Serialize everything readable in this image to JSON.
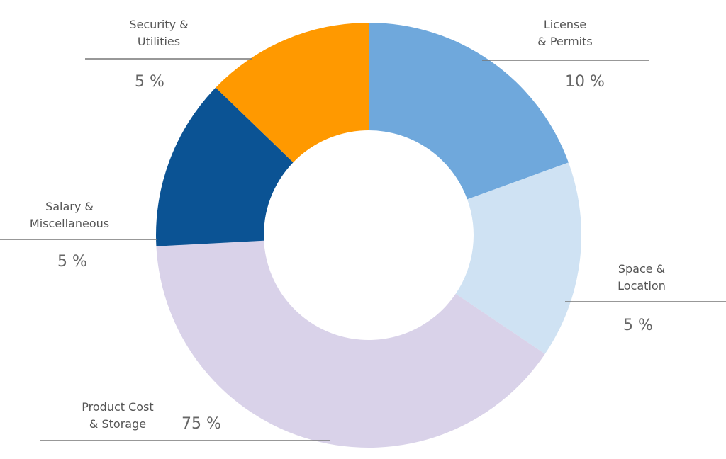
{
  "chart_data": {
    "type": "pie",
    "donut": true,
    "title": "",
    "slices": [
      {
        "label_lines": [
          "License",
          "& Permits"
        ],
        "value": 10,
        "value_text": "10  %",
        "color": "#6fa8dc"
      },
      {
        "label_lines": [
          "Space &",
          "Location"
        ],
        "value": 5,
        "value_text": "5  %",
        "color": "#cfe2f3"
      },
      {
        "label_lines": [
          "Product Cost",
          "& Storage"
        ],
        "value": 75,
        "value_text": "75  %",
        "color": "#d9d2e9"
      },
      {
        "label_lines": [
          "Salary &",
          "Miscellaneous"
        ],
        "value": 5,
        "value_text": "5  %",
        "color": "#0b5394"
      },
      {
        "label_lines": [
          "Security &",
          "Utilities"
        ],
        "value": 5,
        "value_text": "5  %",
        "color": "#ff9900"
      }
    ]
  }
}
